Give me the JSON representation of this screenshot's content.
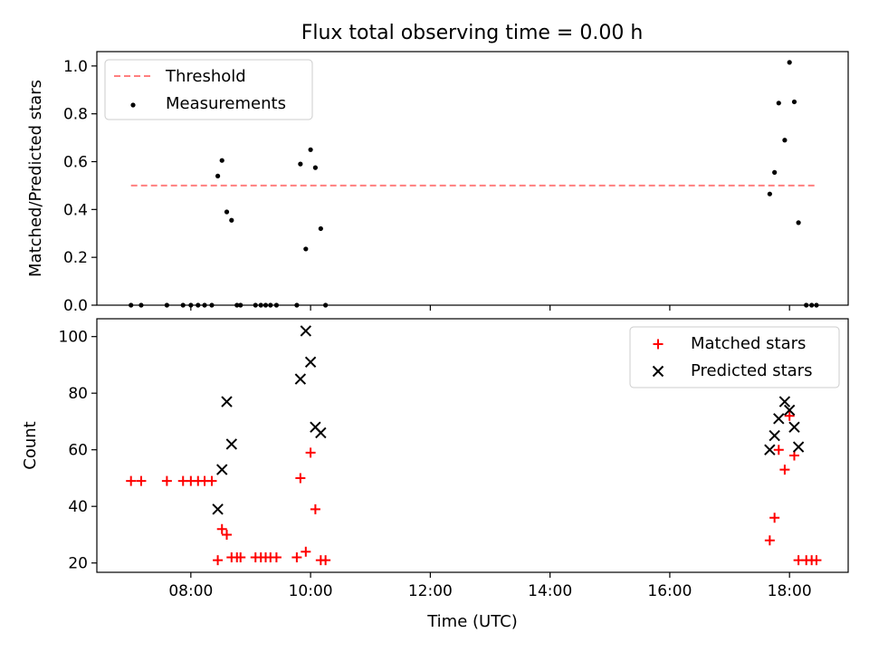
{
  "title": "Flux total observing time = 0.00 h",
  "chart_data": [
    {
      "type": "scatter",
      "ylabel": "Matched/Predicted stars",
      "xlim": [
        6.43,
        18.98
      ],
      "ylim": [
        0,
        1.06
      ],
      "yticks": [
        0.0,
        0.2,
        0.4,
        0.6,
        0.8,
        1.0
      ],
      "ytick_labels": [
        "0.0",
        "0.2",
        "0.4",
        "0.6",
        "0.8",
        "1.0"
      ],
      "xticks": [
        8,
        10,
        12,
        14,
        16,
        18
      ],
      "xtick_labels": [
        "",
        "",
        "",
        "",
        "",
        ""
      ],
      "legend": {
        "position": "top-left",
        "entries": [
          "Threshold",
          "Measurements"
        ]
      },
      "threshold": {
        "name": "Threshold",
        "value": 0.5,
        "x_range": [
          7.0,
          18.45
        ],
        "color": "#ff7f7f",
        "style": "dashed"
      },
      "series": [
        {
          "name": "Measurements",
          "color": "#000000",
          "marker": "dot",
          "x": [
            7.0,
            7.17,
            7.6,
            7.87,
            8.0,
            8.12,
            8.23,
            8.35,
            8.45,
            8.52,
            8.6,
            8.68,
            8.77,
            8.83,
            9.08,
            9.17,
            9.25,
            9.33,
            9.43,
            9.77,
            9.83,
            9.92,
            10.0,
            10.08,
            10.17,
            10.25,
            17.67,
            17.75,
            17.82,
            17.92,
            18.0,
            18.08,
            18.15,
            18.28,
            18.37,
            18.45
          ],
          "y": [
            0.0,
            0.0,
            0.0,
            0.0,
            0.0,
            0.0,
            0.0,
            0.0,
            0.54,
            0.605,
            0.39,
            0.355,
            0.0,
            0.0,
            0.0,
            0.0,
            0.0,
            0.0,
            0.0,
            0.0,
            0.59,
            0.235,
            0.65,
            0.575,
            0.32,
            0.0,
            0.465,
            0.555,
            0.845,
            0.69,
            1.015,
            0.85,
            0.345,
            0.0,
            0.0,
            0.0
          ]
        }
      ]
    },
    {
      "type": "scatter",
      "xlabel": "Time (UTC)",
      "ylabel": "Count",
      "xlim": [
        6.43,
        18.98
      ],
      "ylim": [
        16.7,
        106.3
      ],
      "yticks": [
        20,
        40,
        60,
        80,
        100
      ],
      "ytick_labels": [
        "20",
        "40",
        "60",
        "80",
        "100"
      ],
      "xticks": [
        8,
        10,
        12,
        14,
        16,
        18
      ],
      "xtick_labels": [
        "08:00",
        "10:00",
        "12:00",
        "14:00",
        "16:00",
        "18:00"
      ],
      "legend": {
        "position": "top-right",
        "entries": [
          "Matched stars",
          "Predicted stars"
        ]
      },
      "series": [
        {
          "name": "Matched stars",
          "color": "#ff0000",
          "marker": "plus",
          "x": [
            7.0,
            7.17,
            7.6,
            7.87,
            8.0,
            8.12,
            8.23,
            8.35,
            8.45,
            8.52,
            8.6,
            8.68,
            8.77,
            8.83,
            9.08,
            9.17,
            9.25,
            9.33,
            9.43,
            9.77,
            9.83,
            9.92,
            10.0,
            10.08,
            10.17,
            10.25,
            17.67,
            17.75,
            17.82,
            17.92,
            18.0,
            18.08,
            18.15,
            18.28,
            18.37,
            18.45
          ],
          "y": [
            49,
            49,
            49,
            49,
            49,
            49,
            49,
            49,
            21,
            32,
            30,
            22,
            22,
            22,
            22,
            22,
            22,
            22,
            22,
            22,
            50,
            24,
            59,
            39,
            21,
            21,
            28,
            36,
            60,
            53,
            72,
            58,
            21,
            21,
            21,
            21
          ]
        },
        {
          "name": "Predicted stars",
          "color": "#000000",
          "marker": "x",
          "x": [
            8.45,
            8.52,
            8.6,
            8.68,
            9.83,
            9.92,
            10.0,
            10.08,
            10.17,
            17.67,
            17.75,
            17.82,
            17.92,
            18.0,
            18.08,
            18.15
          ],
          "y": [
            39,
            53,
            77,
            62,
            85,
            102,
            91,
            68,
            66,
            60,
            65,
            71,
            77,
            74,
            68,
            61
          ]
        }
      ]
    }
  ]
}
